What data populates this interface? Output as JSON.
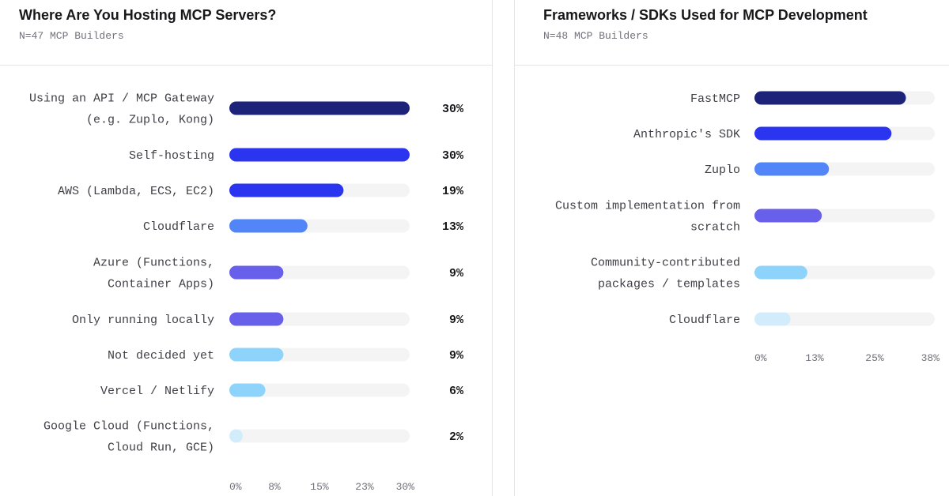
{
  "left": {
    "title": "Where Are You Hosting MCP Servers?",
    "subtitle": "N=47 MCP Builders"
  },
  "right": {
    "title": "Frameworks / SDKs Used for MCP Development",
    "subtitle": "N=48 MCP Builders"
  },
  "chart_data": [
    {
      "type": "bar",
      "orientation": "horizontal",
      "title": "Where Are You Hosting MCP Servers?",
      "subtitle": "N=47 MCP Builders",
      "categories": [
        [
          "Using an API / MCP Gateway",
          "(e.g. Zuplo, Kong)"
        ],
        [
          "Self-hosting"
        ],
        [
          "AWS (Lambda, ECS, EC2)"
        ],
        [
          "Cloudflare"
        ],
        [
          "Azure (Functions,",
          "Container Apps)"
        ],
        [
          "Only running locally"
        ],
        [
          "Not decided yet"
        ],
        [
          "Vercel / Netlify"
        ],
        [
          "Google Cloud (Functions,",
          "Cloud Run, GCE)"
        ]
      ],
      "values": [
        30,
        30,
        19,
        13,
        9,
        9,
        9,
        6,
        2
      ],
      "value_labels": [
        "30%",
        "30%",
        "19%",
        "13%",
        "9%",
        "9%",
        "9%",
        "6%",
        "2%"
      ],
      "bar_colors": [
        "#1e237a",
        "#2b35f0",
        "#2b35f0",
        "#5285f7",
        "#6860ea",
        "#6860ea",
        "#8dd3fb",
        "#8dd3fb",
        "#d3ecfc"
      ],
      "xlim": [
        0,
        30
      ],
      "xticks": [
        0,
        7.5,
        15,
        22.5,
        30
      ],
      "xtick_labels": [
        "0%",
        "8%",
        "15%",
        "23%",
        "30%"
      ],
      "show_value_labels": true,
      "track_color": "#f4f4f5"
    },
    {
      "type": "bar",
      "orientation": "horizontal",
      "title": "Frameworks / SDKs Used for MCP Development",
      "subtitle": "N=48 MCP Builders",
      "categories": [
        [
          "FastMCP"
        ],
        [
          "Anthropic's SDK"
        ],
        [
          "Zuplo"
        ],
        [
          "Custom implementation from",
          "scratch"
        ],
        [
          "Community-contributed",
          "packages / templates"
        ],
        [
          "Cloudflare"
        ]
      ],
      "values": [
        31.5,
        28.5,
        15.5,
        14,
        11,
        7.5
      ],
      "bar_colors": [
        "#1e237a",
        "#2b35f0",
        "#5285f7",
        "#6860ea",
        "#8dd3fb",
        "#d3ecfc"
      ],
      "xlim": [
        0,
        37.5
      ],
      "xticks": [
        0,
        12.5,
        25,
        37.5
      ],
      "xtick_labels": [
        "0%",
        "13%",
        "25%",
        "38%"
      ],
      "show_value_labels": false,
      "track_color": "#f4f4f5"
    }
  ]
}
